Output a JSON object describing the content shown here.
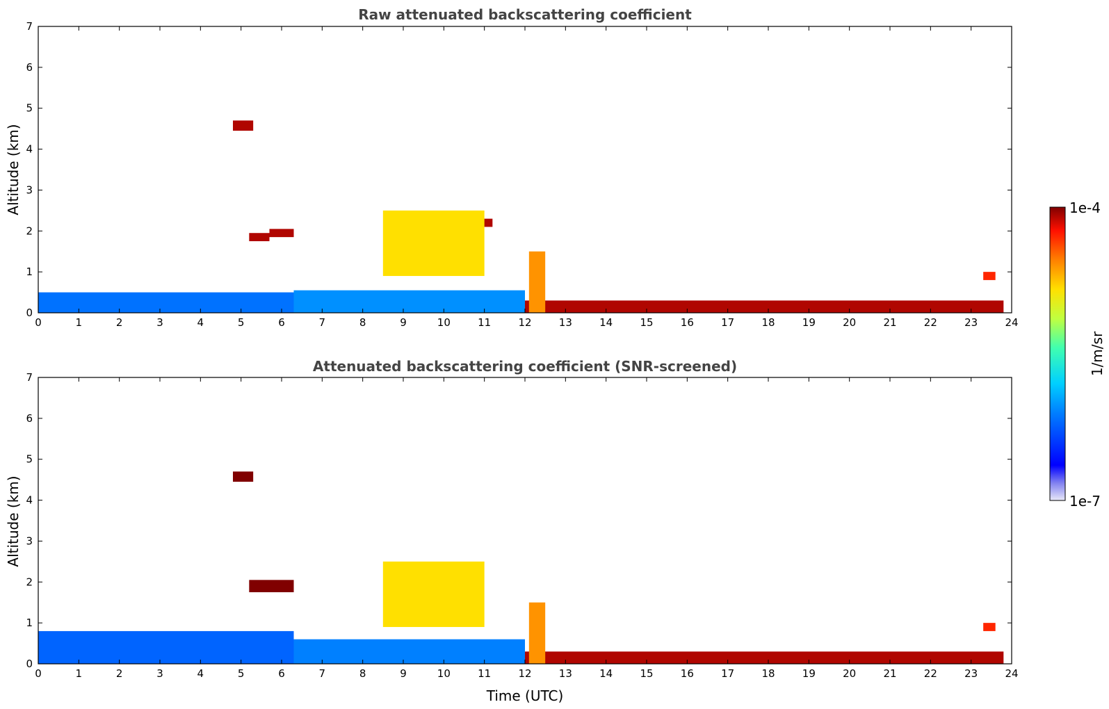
{
  "chart_data": [
    {
      "type": "heatmap",
      "title": "Raw attenuated backscattering coefficient",
      "xlabel": "",
      "ylabel": "Altitude (km)",
      "xlim": [
        0,
        24
      ],
      "ylim": [
        0,
        7
      ],
      "x_ticks": [
        "0",
        "1",
        "2",
        "3",
        "4",
        "5",
        "6",
        "7",
        "8",
        "9",
        "10",
        "11",
        "12",
        "13",
        "14",
        "15",
        "16",
        "17",
        "18",
        "19",
        "20",
        "21",
        "22",
        "23",
        "24"
      ],
      "y_ticks": [
        "0",
        "1",
        "2",
        "3",
        "4",
        "5",
        "6",
        "7"
      ],
      "features": [
        {
          "desc": "boundary layer",
          "t": [
            0,
            6.3
          ],
          "z": [
            0,
            0.5
          ],
          "level": 0.28
        },
        {
          "desc": "boundary layer",
          "t": [
            6.3,
            12
          ],
          "z": [
            0,
            0.55
          ],
          "level": 0.32
        },
        {
          "desc": "aerosol layer",
          "t": [
            12,
            23.8
          ],
          "z": [
            0,
            0.3
          ],
          "level": 0.97
        },
        {
          "desc": "cloud",
          "t": [
            4.8,
            5.3
          ],
          "z": [
            4.45,
            4.7
          ],
          "level": 0.97
        },
        {
          "desc": "cloud",
          "t": [
            5.2,
            5.7
          ],
          "z": [
            1.75,
            1.95
          ],
          "level": 0.97
        },
        {
          "desc": "cloud",
          "t": [
            5.7,
            6.3
          ],
          "z": [
            1.85,
            2.05
          ],
          "level": 0.97
        },
        {
          "desc": "cloud",
          "t": [
            10.6,
            11.2
          ],
          "z": [
            2.1,
            2.3
          ],
          "level": 0.97
        },
        {
          "desc": "precipitation",
          "t": [
            8.5,
            11
          ],
          "z": [
            0.9,
            2.5
          ],
          "level": 0.72
        },
        {
          "desc": "precipitation",
          "t": [
            12.1,
            12.5
          ],
          "z": [
            0,
            1.5
          ],
          "level": 0.8
        },
        {
          "desc": "cloud",
          "t": [
            23.3,
            23.6
          ],
          "z": [
            0.8,
            1.0
          ],
          "level": 0.9
        }
      ]
    },
    {
      "type": "heatmap",
      "title": "Attenuated backscattering coefficient (SNR-screened)",
      "xlabel": "Time (UTC)",
      "ylabel": "Altitude (km)",
      "xlim": [
        0,
        24
      ],
      "ylim": [
        0,
        7
      ],
      "x_ticks": [
        "0",
        "1",
        "2",
        "3",
        "4",
        "5",
        "6",
        "7",
        "8",
        "9",
        "10",
        "11",
        "12",
        "13",
        "14",
        "15",
        "16",
        "17",
        "18",
        "19",
        "20",
        "21",
        "22",
        "23",
        "24"
      ],
      "y_ticks": [
        "0",
        "1",
        "2",
        "3",
        "4",
        "5",
        "6",
        "7"
      ],
      "features": [
        {
          "desc": "boundary layer",
          "t": [
            0,
            6.3
          ],
          "z": [
            0,
            0.8
          ],
          "level": 0.26
        },
        {
          "desc": "boundary layer",
          "t": [
            6.3,
            12
          ],
          "z": [
            0,
            0.6
          ],
          "level": 0.3
        },
        {
          "desc": "aerosol layer",
          "t": [
            12,
            23.8
          ],
          "z": [
            0,
            0.3
          ],
          "level": 0.97
        },
        {
          "desc": "cloud",
          "t": [
            4.8,
            5.3
          ],
          "z": [
            4.45,
            4.7
          ],
          "level": 1.0
        },
        {
          "desc": "cloud",
          "t": [
            5.2,
            6.3
          ],
          "z": [
            1.75,
            2.05
          ],
          "level": 1.0
        },
        {
          "desc": "precipitation",
          "t": [
            8.5,
            11
          ],
          "z": [
            0.9,
            2.5
          ],
          "level": 0.72
        },
        {
          "desc": "precipitation",
          "t": [
            12.1,
            12.5
          ],
          "z": [
            0,
            1.5
          ],
          "level": 0.8
        },
        {
          "desc": "cloud",
          "t": [
            23.3,
            23.6
          ],
          "z": [
            0.8,
            1.0
          ],
          "level": 0.9
        }
      ]
    }
  ],
  "colorbar": {
    "max_label": "1e-4",
    "min_label": "1e-7",
    "unit_label": "1/m/sr",
    "colormap": "jet"
  }
}
